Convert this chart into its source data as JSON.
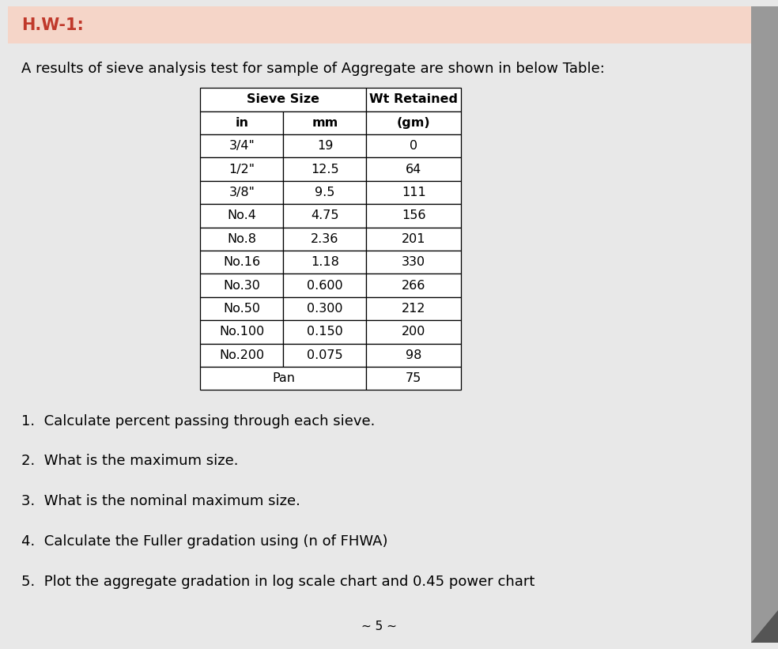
{
  "title": "H.W-1:",
  "title_color": "#c0392b",
  "title_bg_color": "#f5d5c8",
  "intro_text": "A results of sieve analysis test for sample of Aggregate are shown in below Table:",
  "table_headers_row1_left": "Sieve Size",
  "table_headers_row1_right": "Wt Retained",
  "table_headers_row2": [
    "in",
    "mm",
    "(gm)"
  ],
  "table_data": [
    [
      "3/4\"",
      "19",
      "0"
    ],
    [
      "1/2\"",
      "12.5",
      "64"
    ],
    [
      "3/8\"",
      "9.5",
      "111"
    ],
    [
      "No.4",
      "4.75",
      "156"
    ],
    [
      "No.8",
      "2.36",
      "201"
    ],
    [
      "No.16",
      "1.18",
      "330"
    ],
    [
      "No.30",
      "0.600",
      "266"
    ],
    [
      "No.50",
      "0.300",
      "212"
    ],
    [
      "No.100",
      "0.150",
      "200"
    ],
    [
      "No.200",
      "0.075",
      "98"
    ],
    [
      "Pan",
      "",
      "75"
    ]
  ],
  "questions": [
    "1.  Calculate percent passing through each sieve.",
    "2.  What is the maximum size.",
    "3.  What is the nominal maximum size.",
    "4.  Calculate the Fuller gradation using (n of FHWA)",
    "5.  Plot the aggregate gradation in log scale chart and 0.45 power chart"
  ],
  "footer": "~ 5 ~",
  "bg_color": "#ffffff",
  "text_color": "#000000",
  "border_color": "#000000",
  "page_bg": "#e8e8e8",
  "title_fontsize": 15,
  "intro_fontsize": 13,
  "table_fontsize": 11.5,
  "question_fontsize": 13,
  "footer_fontsize": 11
}
